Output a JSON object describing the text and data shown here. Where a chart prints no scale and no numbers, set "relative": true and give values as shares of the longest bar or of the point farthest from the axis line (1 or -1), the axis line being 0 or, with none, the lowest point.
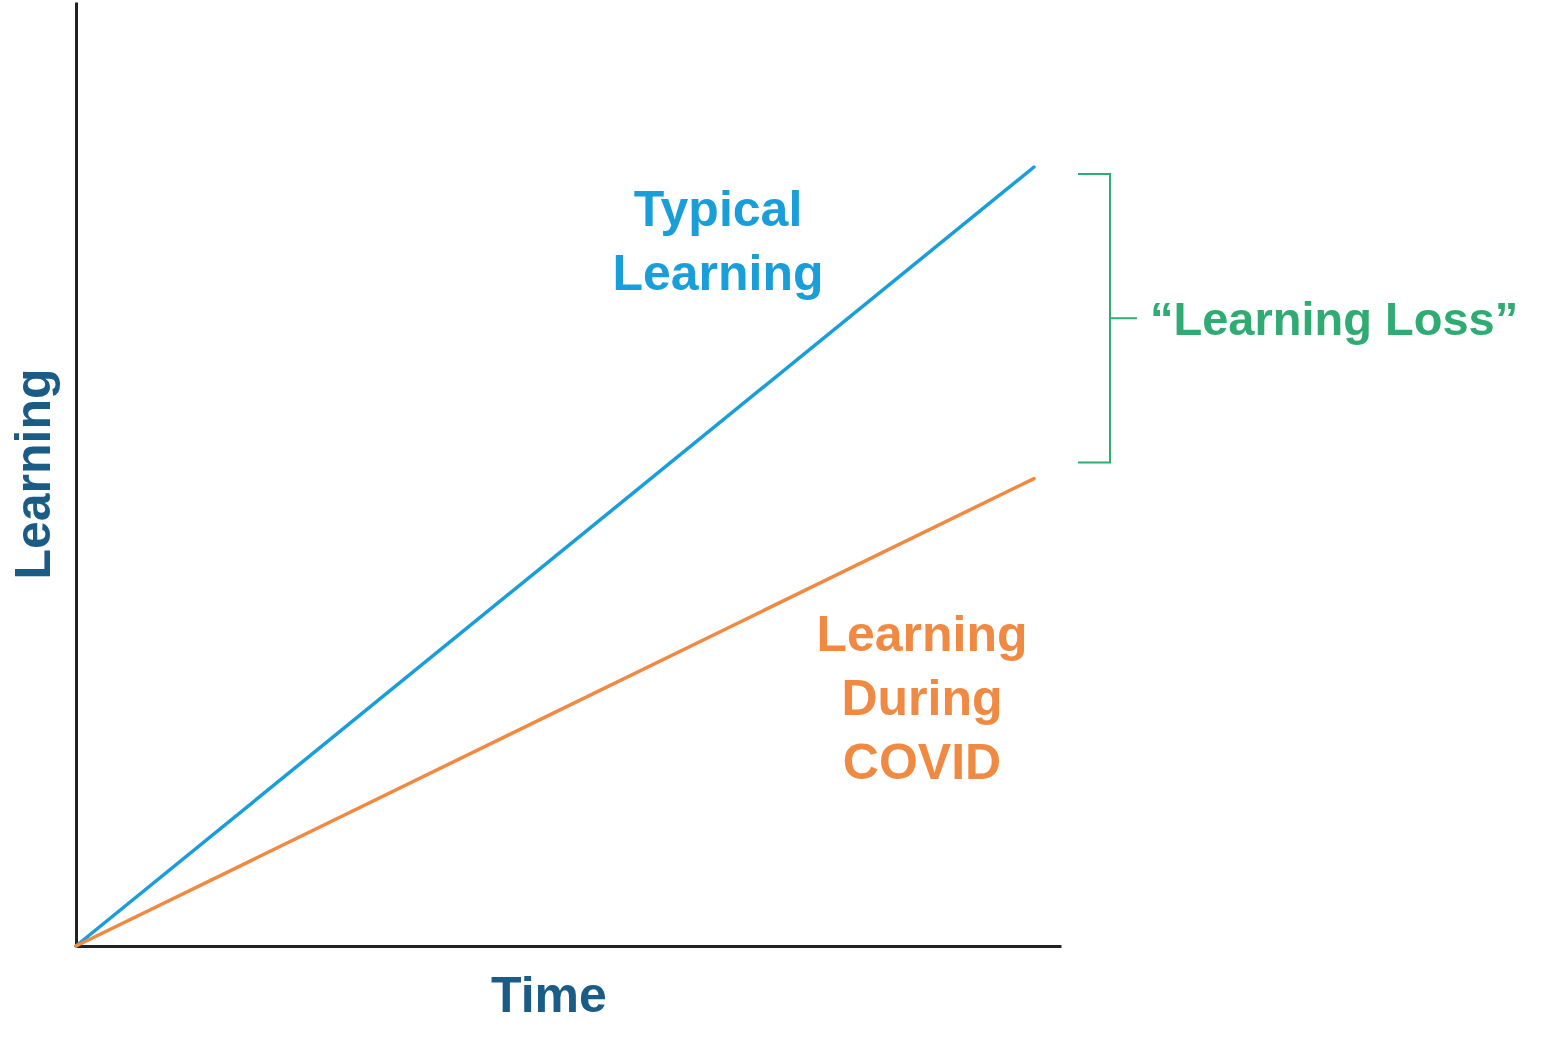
{
  "chart_data": {
    "type": "line",
    "xlabel": "Time",
    "ylabel": "Learning",
    "relative": true,
    "categories": [
      null,
      null
    ],
    "series": [
      {
        "name": "Typical Learning",
        "color": "#1a9ed9",
        "values": [
          0,
          1
        ]
      },
      {
        "name": "Learning During COVID",
        "color": "#f08a42",
        "values": [
          0,
          0.6
        ]
      }
    ],
    "annotations": [
      "“Learning Loss”"
    ]
  }
}
